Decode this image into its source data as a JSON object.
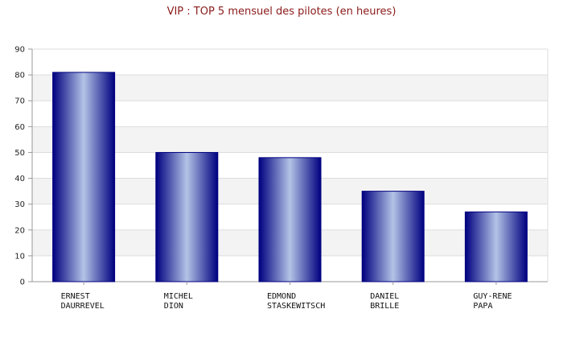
{
  "chart_data": {
    "type": "bar",
    "title": "VIP : TOP 5 mensuel des pilotes (en heures)",
    "categories": [
      [
        "ERNEST",
        "DAURREVEL"
      ],
      [
        "MICHEL",
        "DION"
      ],
      [
        "EDMOND",
        "STASKEWITSCH"
      ],
      [
        "DANIEL",
        "BRILLE"
      ],
      [
        "GUY-RENE",
        "PAPA"
      ]
    ],
    "values": [
      81,
      50,
      48,
      35,
      27
    ],
    "xlabel": "",
    "ylabel": "",
    "ylim": [
      0,
      90
    ],
    "yticks": [
      0,
      10,
      20,
      30,
      40,
      50,
      60,
      70,
      80,
      90
    ],
    "grid": true,
    "legend": "none",
    "colors": {
      "bar_edge": "#00007f",
      "bar_mid": "#b3c3e6",
      "band": "#f3f3f3",
      "grid": "#dddddd",
      "axis": "#999999",
      "title": "#8b1a1a"
    }
  }
}
